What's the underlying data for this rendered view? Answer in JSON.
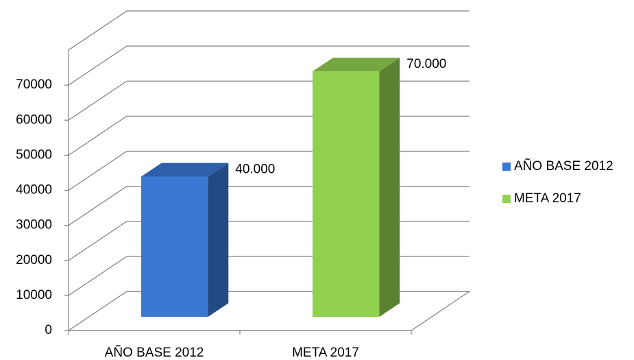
{
  "chart_data": {
    "type": "bar3d",
    "categories": [
      "AÑO BASE 2012",
      "META 2017"
    ],
    "series": [
      {
        "name": "AÑO BASE 2012",
        "color": "#3a78d4",
        "values": [
          40000,
          null
        ],
        "value_labels": [
          "40.000",
          null
        ]
      },
      {
        "name": "META 2017",
        "color": "#92d050",
        "values": [
          null,
          70000
        ],
        "value_labels": [
          null,
          "70.000"
        ]
      }
    ],
    "ylim": [
      0,
      80000
    ],
    "yticks": [
      0,
      10000,
      20000,
      30000,
      40000,
      50000,
      60000,
      70000
    ],
    "grid": true,
    "legend": "right"
  }
}
